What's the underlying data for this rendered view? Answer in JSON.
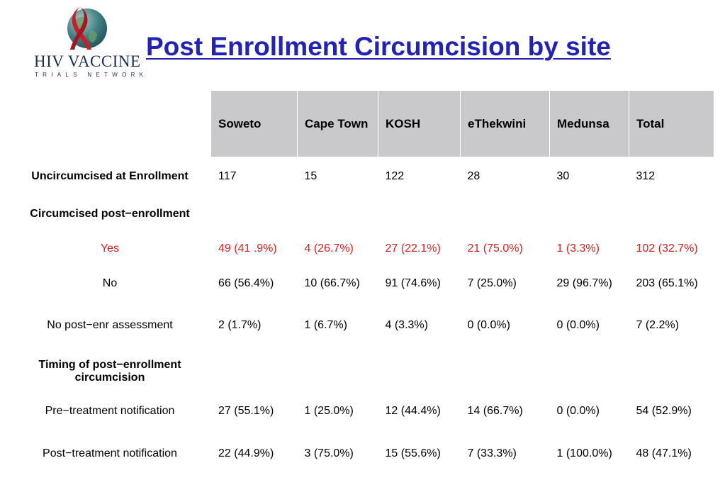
{
  "logo": {
    "name_line1": "HIV VACCINE",
    "name_line2": "TRIALS NETWORK",
    "colors": {
      "globe": "#2f6d77",
      "ribbon": "#c8202b",
      "text": "#1c2f55"
    }
  },
  "title": "Post Enrollment Circumcision by site",
  "colors": {
    "title": "#2222b8",
    "header_bg": "#c9c9cb",
    "highlight": "#e41e1e"
  },
  "table": {
    "columns": [
      "Soweto",
      "Cape Town",
      "KOSH",
      "eThekwini",
      "Medunsa",
      "Total"
    ],
    "rows": [
      {
        "label": "Uncircumcised at Enrollment",
        "style": "bold-label",
        "values": [
          "117",
          "15",
          "122",
          "28",
          "30",
          "312"
        ]
      },
      {
        "label": "Circumcised post−enrollment",
        "style": "bold-label",
        "values": [
          "",
          "",
          "",
          "",
          "",
          ""
        ]
      },
      {
        "label": "Yes",
        "style": "red",
        "values": [
          "49 (41 .9%)",
          "4 (26.7%)",
          "27 (22.1%)",
          "21 (75.0%)",
          "1 (3.3%)",
          "102 (32.7%)"
        ]
      },
      {
        "label": "No",
        "style": "plain",
        "values": [
          "66 (56.4%)",
          "10 (66.7%)",
          "91 (74.6%)",
          "7 (25.0%)",
          "29 (96.7%)",
          "203 (65.1%)"
        ]
      },
      {
        "label": "No post−enr assessment",
        "style": "plain",
        "values": [
          "2 (1.7%)",
          "1 (6.7%)",
          "4 (3.3%)",
          "0 (0.0%)",
          "0 (0.0%)",
          "7 (2.2%)"
        ]
      },
      {
        "label": "Timing of post−enrollment circumcision",
        "style": "bold-label",
        "values": [
          "",
          "",
          "",
          "",
          "",
          ""
        ]
      },
      {
        "label": "Pre−treatment notification",
        "style": "plain",
        "values": [
          "27 (55.1%)",
          "1 (25.0%)",
          "12 (44.4%)",
          "14 (66.7%)",
          "0 (0.0%)",
          "54 (52.9%)"
        ]
      },
      {
        "label": "Post−treatment notification",
        "style": "plain",
        "values": [
          "22 (44.9%)",
          "3 (75.0%)",
          "15 (55.6%)",
          "7 (33.3%)",
          "1 (100.0%)",
          "48 (47.1%)"
        ]
      }
    ]
  }
}
